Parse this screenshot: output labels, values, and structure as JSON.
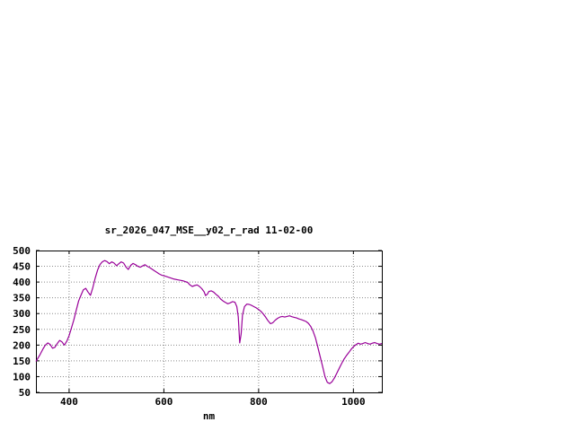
{
  "window": {
    "background": "#ffffff"
  },
  "chart_data": {
    "type": "line",
    "title": "sr_2026_047_MSE__y02_r_rad 11-02-00",
    "xlabel": "nm",
    "ylabel": "",
    "xlim": [
      330,
      1060
    ],
    "ylim": [
      50,
      500
    ],
    "xticks": [
      400,
      600,
      800,
      1000
    ],
    "yticks": [
      50,
      100,
      150,
      200,
      250,
      300,
      350,
      400,
      450,
      500
    ],
    "grid": true,
    "legend": "none",
    "line_color": "#990099",
    "series": [
      {
        "x": [
          330,
          338,
          345,
          350,
          355,
          360,
          365,
          370,
          375,
          380,
          385,
          390,
          395,
          400,
          405,
          410,
          415,
          420,
          425,
          430,
          435,
          440,
          445,
          450,
          455,
          460,
          465,
          470,
          475,
          480,
          485,
          490,
          495,
          500,
          505,
          510,
          515,
          520,
          525,
          530,
          535,
          540,
          545,
          550,
          555,
          560,
          565,
          570,
          575,
          580,
          585,
          590,
          595,
          600,
          610,
          620,
          630,
          640,
          650,
          655,
          660,
          665,
          670,
          675,
          680,
          685,
          688,
          692,
          695,
          700,
          705,
          710,
          715,
          720,
          725,
          730,
          735,
          740,
          745,
          750,
          754,
          757,
          760,
          763,
          766,
          770,
          775,
          780,
          785,
          790,
          795,
          800,
          805,
          810,
          815,
          820,
          825,
          830,
          835,
          840,
          845,
          850,
          855,
          860,
          865,
          870,
          875,
          880,
          885,
          890,
          895,
          900,
          905,
          910,
          915,
          920,
          925,
          930,
          935,
          940,
          945,
          950,
          955,
          960,
          965,
          970,
          975,
          980,
          985,
          990,
          995,
          1000,
          1005,
          1010,
          1015,
          1020,
          1025,
          1030,
          1035,
          1040,
          1045,
          1050,
          1055,
          1060
        ],
        "y": [
          148,
          168,
          188,
          200,
          207,
          202,
          190,
          193,
          205,
          215,
          210,
          200,
          212,
          230,
          255,
          280,
          310,
          340,
          358,
          375,
          380,
          368,
          358,
          382,
          412,
          438,
          455,
          464,
          468,
          465,
          458,
          464,
          460,
          452,
          458,
          464,
          460,
          448,
          440,
          453,
          459,
          455,
          450,
          447,
          451,
          455,
          450,
          446,
          441,
          436,
          431,
          426,
          422,
          420,
          415,
          410,
          407,
          404,
          399,
          391,
          386,
          389,
          391,
          386,
          379,
          369,
          357,
          362,
          370,
          372,
          368,
          361,
          355,
          346,
          340,
          335,
          331,
          334,
          338,
          336,
          322,
          290,
          207,
          235,
          295,
          322,
          330,
          329,
          326,
          322,
          318,
          313,
          307,
          298,
          288,
          277,
          268,
          271,
          279,
          285,
          289,
          291,
          289,
          291,
          293,
          290,
          288,
          286,
          283,
          281,
          278,
          275,
          269,
          259,
          244,
          222,
          193,
          163,
          132,
          100,
          82,
          78,
          84,
          96,
          111,
          126,
          141,
          155,
          166,
          176,
          186,
          195,
          201,
          206,
          203,
          205,
          208,
          205,
          203,
          206,
          208,
          205,
          203,
          205
        ]
      }
    ]
  }
}
